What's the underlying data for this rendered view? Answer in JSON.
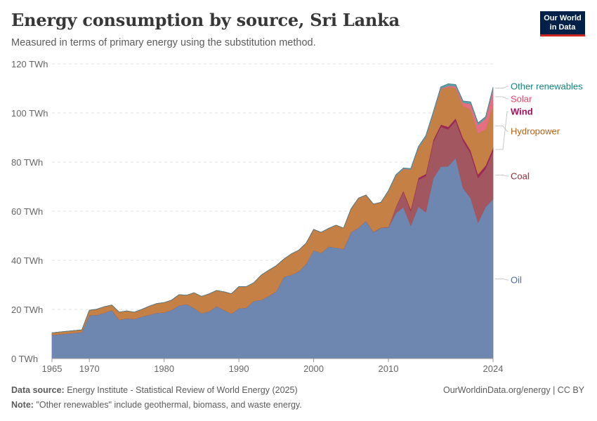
{
  "header": {
    "title": "Energy consumption by source, Sri Lanka",
    "subtitle": "Measured in terms of primary energy using the substitution method.",
    "logo_line1": "Our World",
    "logo_line2": "in Data"
  },
  "footer": {
    "source_label": "Data source:",
    "source_text": "Energy Institute - Statistical Review of World Energy (2025)",
    "note_label": "Note:",
    "note_text": "\"Other renewables\" include geothermal, biomass, and waste energy.",
    "link_text": "OurWorldinData.org/energy",
    "license_text": " | CC BY"
  },
  "chart_data": {
    "type": "area",
    "stacked": true,
    "title": "Energy consumption by source, Sri Lanka",
    "subtitle": "Measured in terms of primary energy using the substitution method.",
    "unit": "TWh",
    "xlim": [
      1965,
      2024
    ],
    "ylim": [
      0,
      120
    ],
    "yticks": [
      0,
      20,
      40,
      60,
      80,
      100,
      120
    ],
    "ytick_labels": [
      "0 TWh",
      "20 TWh",
      "40 TWh",
      "60 TWh",
      "80 TWh",
      "100 TWh",
      "120 TWh"
    ],
    "xticks": [
      1965,
      1970,
      1980,
      1990,
      2000,
      2010,
      2024
    ],
    "grid": "horizontal dashed",
    "legend": "right, inline labels",
    "x": [
      1965,
      1966,
      1967,
      1968,
      1969,
      1970,
      1971,
      1972,
      1973,
      1974,
      1975,
      1976,
      1977,
      1978,
      1979,
      1980,
      1981,
      1982,
      1983,
      1984,
      1985,
      1986,
      1987,
      1988,
      1989,
      1990,
      1991,
      1992,
      1993,
      1994,
      1995,
      1996,
      1997,
      1998,
      1999,
      2000,
      2001,
      2002,
      2003,
      2004,
      2005,
      2006,
      2007,
      2008,
      2009,
      2010,
      2011,
      2012,
      2013,
      2014,
      2015,
      2016,
      2017,
      2018,
      2019,
      2020,
      2021,
      2022,
      2023,
      2024
    ],
    "series": [
      {
        "name": "Oil",
        "color": "#6d87b0",
        "label_color": "#4c6a9c",
        "values": [
          9.6,
          9.9,
          10.2,
          10.5,
          10.8,
          17.6,
          17.8,
          18.6,
          19.8,
          15.8,
          16.4,
          16.1,
          17.1,
          17.8,
          18.6,
          18.8,
          19.8,
          21.6,
          22.2,
          20.6,
          18.5,
          19.2,
          21.3,
          19.8,
          18.3,
          20.5,
          20.7,
          23.5,
          23.9,
          25.5,
          27.4,
          33.2,
          34.1,
          35.5,
          38.6,
          44.1,
          43.0,
          45.6,
          45.2,
          44.6,
          51.5,
          53.3,
          56.1,
          51.5,
          53.2,
          53.5,
          59.2,
          61.7,
          54.2,
          62.0,
          59.6,
          73.4,
          78.2,
          78.3,
          81.7,
          69.4,
          65.4,
          55.5,
          61.8,
          65.0
        ]
      },
      {
        "name": "Coal",
        "color": "#a2565f",
        "label_color": "#883039",
        "values": [
          0,
          0,
          0,
          0,
          0,
          0,
          0,
          0,
          0,
          0,
          0,
          0,
          0,
          0,
          0,
          0,
          0,
          0,
          0,
          0,
          0,
          0,
          0,
          0,
          0,
          0,
          0,
          0,
          0,
          0,
          0,
          0,
          0,
          0,
          0,
          0,
          0,
          0,
          0,
          0,
          0,
          0,
          0,
          0.1,
          0.1,
          0.1,
          2.4,
          6.2,
          5.9,
          10.8,
          14.8,
          14.7,
          16.2,
          15.1,
          15.1,
          19.3,
          18.2,
          18.1,
          15.6,
          19.4
        ]
      },
      {
        "name": "Wind",
        "color": "#9c2a57",
        "label_color": "#a2105d",
        "values": [
          0,
          0,
          0,
          0,
          0,
          0,
          0,
          0,
          0,
          0,
          0,
          0,
          0,
          0,
          0,
          0,
          0,
          0,
          0,
          0,
          0,
          0,
          0,
          0,
          0,
          0,
          0,
          0,
          0,
          0,
          0,
          0,
          0,
          0,
          0,
          0,
          0,
          0,
          0,
          0,
          0,
          0,
          0,
          0,
          0,
          0,
          0.2,
          0.5,
          0.7,
          0.8,
          0.8,
          0.9,
          0.9,
          1.0,
          1.1,
          1.1,
          1.2,
          1.5,
          1.3,
          1.5
        ]
      },
      {
        "name": "Hydropower",
        "color": "#c58045",
        "label_color": "#b16214",
        "values": [
          0.9,
          0.9,
          0.9,
          0.9,
          0.9,
          2.1,
          2.3,
          2.5,
          2.0,
          3.1,
          3.0,
          2.8,
          2.9,
          3.5,
          3.8,
          4.0,
          4.0,
          4.4,
          3.6,
          6.2,
          6.8,
          7.1,
          6.4,
          7.4,
          8.1,
          8.8,
          8.6,
          7.4,
          10.1,
          10.5,
          10.4,
          7.3,
          8.5,
          8.6,
          8.4,
          8.5,
          8.4,
          7.4,
          9.1,
          8.5,
          9.5,
          12.0,
          10.5,
          11.3,
          10.3,
          14.6,
          12.7,
          8.8,
          16.1,
          12.1,
          15.0,
          10.6,
          14.3,
          16.2,
          12.2,
          13.1,
          16.7,
          16.7,
          14.7,
          17.6
        ]
      },
      {
        "name": "Solar",
        "color": "#e56e81",
        "label_color": "#e04866",
        "values": [
          0,
          0,
          0,
          0,
          0,
          0,
          0,
          0,
          0,
          0,
          0,
          0,
          0,
          0,
          0,
          0,
          0,
          0,
          0,
          0,
          0,
          0,
          0,
          0,
          0,
          0,
          0,
          0,
          0,
          0,
          0,
          0,
          0,
          0,
          0,
          0,
          0,
          0,
          0,
          0,
          0,
          0,
          0,
          0,
          0,
          0,
          0.05,
          0.1,
          0.1,
          0.1,
          0.1,
          0.2,
          0.3,
          0.5,
          0.8,
          1.3,
          2.2,
          3.4,
          4.4,
          6.2
        ]
      },
      {
        "name": "Other renewables",
        "color": "#5d9ea6",
        "label_color": "#18847d",
        "values": [
          0,
          0,
          0,
          0,
          0,
          0,
          0,
          0,
          0,
          0,
          0,
          0,
          0,
          0,
          0,
          0,
          0,
          0,
          0,
          0,
          0,
          0,
          0,
          0,
          0,
          0,
          0,
          0,
          0,
          0,
          0,
          0,
          0,
          0,
          0,
          0,
          0,
          0,
          0,
          0,
          0,
          0,
          0,
          0,
          0,
          0.2,
          0.3,
          0.3,
          0.4,
          0.5,
          0.5,
          0.6,
          0.7,
          0.8,
          0.7,
          0.7,
          0.8,
          0.8,
          0.7,
          0.8
        ]
      }
    ]
  }
}
